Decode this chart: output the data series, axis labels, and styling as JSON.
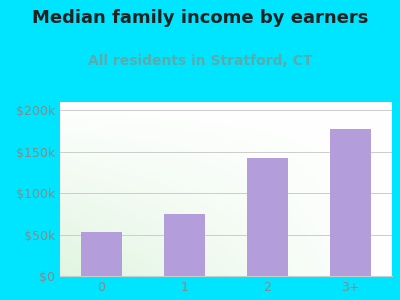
{
  "title": "Median family income by earners",
  "subtitle": "All residents in Stratford, CT",
  "categories": [
    "0",
    "1",
    "2",
    "3+"
  ],
  "values": [
    53000,
    75000,
    142000,
    178000
  ],
  "bar_color": "#b39ddb",
  "title_fontsize": 13,
  "subtitle_fontsize": 10,
  "subtitle_color": "#5aacac",
  "bg_outer": "#00e5ff",
  "ylim": [
    0,
    210000
  ],
  "yticks": [
    0,
    50000,
    100000,
    150000,
    200000
  ],
  "ytick_labels": [
    "$0",
    "$50k",
    "$100k",
    "$150k",
    "$200k"
  ],
  "grid_color": "#cccccc",
  "tick_color": "#888888"
}
